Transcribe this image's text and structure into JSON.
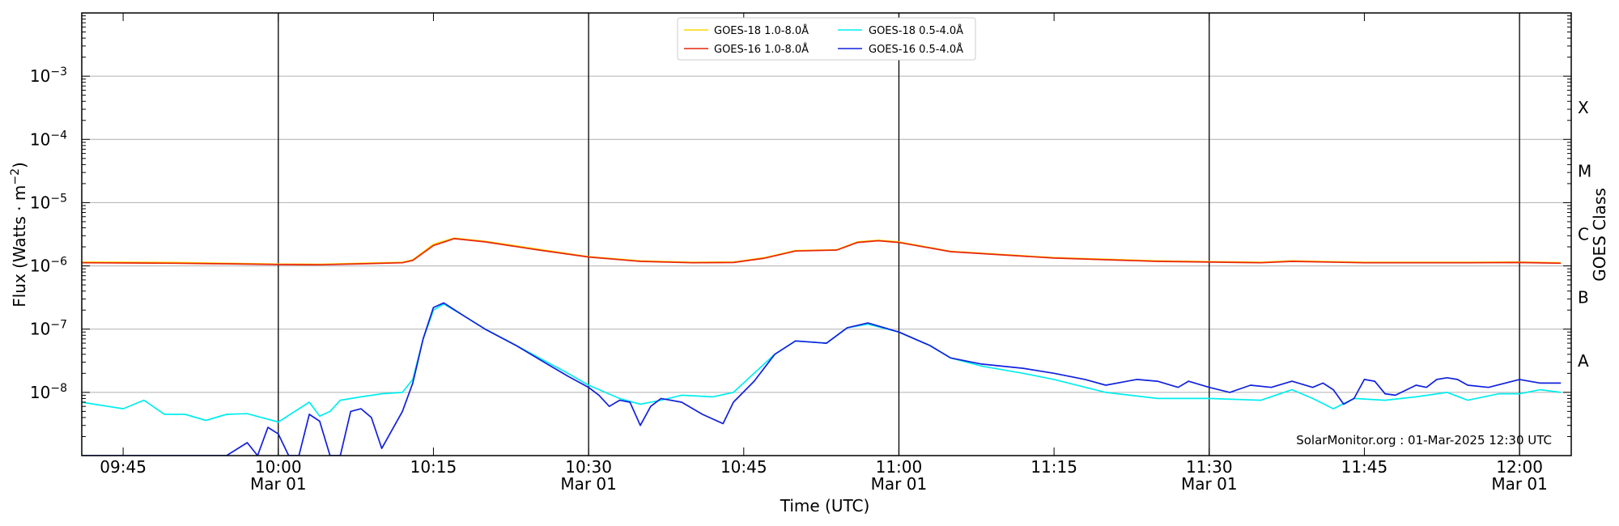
{
  "chart_data": {
    "type": "line",
    "title": "",
    "xlabel": "Time (UTC)",
    "ylabel_main": "Flux (Watts · m",
    "ylabel_sup": "−2",
    "ylabel_end": ")",
    "y2label": "GOES Class",
    "yscale": "log",
    "ylim": [
      1e-09,
      0.01
    ],
    "xlim": [
      "09:41",
      "12:05"
    ],
    "grid": "horizontal",
    "legend_position": "top-center",
    "credit": "SolarMonitor.org : 01-Mar-2025 12:30 UTC",
    "x_ticks": [
      {
        "time": "09:45",
        "label": "09:45",
        "date": ""
      },
      {
        "time": "10:00",
        "label": "10:00",
        "date": "Mar 01"
      },
      {
        "time": "10:15",
        "label": "10:15",
        "date": ""
      },
      {
        "time": "10:30",
        "label": "10:30",
        "date": "Mar 01"
      },
      {
        "time": "10:45",
        "label": "10:45",
        "date": ""
      },
      {
        "time": "11:00",
        "label": "11:00",
        "date": "Mar 01"
      },
      {
        "time": "11:15",
        "label": "11:15",
        "date": ""
      },
      {
        "time": "11:30",
        "label": "11:30",
        "date": "Mar 01"
      },
      {
        "time": "11:45",
        "label": "11:45",
        "date": ""
      },
      {
        "time": "12:00",
        "label": "12:00",
        "date": "Mar 01"
      }
    ],
    "vlines": [
      "10:00",
      "10:30",
      "11:00",
      "11:30",
      "12:00"
    ],
    "y_ticks": [
      {
        "exp": -3,
        "label_base": "10",
        "label_exp": "−3"
      },
      {
        "exp": -4,
        "label_base": "10",
        "label_exp": "−4"
      },
      {
        "exp": -5,
        "label_base": "10",
        "label_exp": "−5"
      },
      {
        "exp": -6,
        "label_base": "10",
        "label_exp": "−6"
      },
      {
        "exp": -7,
        "label_base": "10",
        "label_exp": "−7"
      },
      {
        "exp": -8,
        "label_base": "10",
        "label_exp": "−8"
      }
    ],
    "classes": [
      {
        "label": "X",
        "exp": -3.5
      },
      {
        "label": "M",
        "exp": -4.5
      },
      {
        "label": "C",
        "exp": -5.5
      },
      {
        "label": "B",
        "exp": -6.5
      },
      {
        "label": "A",
        "exp": -7.5
      }
    ],
    "series": [
      {
        "name": "GOES-18 1.0-8.0Å",
        "color": "#ffd700",
        "points": [
          [
            "09:41",
            1.15e-06
          ],
          [
            "09:46",
            1.14e-06
          ],
          [
            "09:50",
            1.13e-06
          ],
          [
            "09:55",
            1.1e-06
          ],
          [
            "10:00",
            1.07e-06
          ],
          [
            "10:04",
            1.06e-06
          ],
          [
            "10:08",
            1.1e-06
          ],
          [
            "10:12",
            1.14e-06
          ],
          [
            "10:13",
            1.25e-06
          ],
          [
            "10:15",
            2.2e-06
          ],
          [
            "10:17",
            2.75e-06
          ],
          [
            "10:20",
            2.45e-06
          ],
          [
            "10:25",
            1.85e-06
          ],
          [
            "10:30",
            1.4e-06
          ],
          [
            "10:35",
            1.2e-06
          ],
          [
            "10:40",
            1.14e-06
          ],
          [
            "10:44",
            1.15e-06
          ],
          [
            "10:47",
            1.35e-06
          ],
          [
            "10:50",
            1.75e-06
          ],
          [
            "10:54",
            1.8e-06
          ],
          [
            "10:56",
            2.4e-06
          ],
          [
            "10:58",
            2.55e-06
          ],
          [
            "11:00",
            2.4e-06
          ],
          [
            "11:05",
            1.7e-06
          ],
          [
            "11:15",
            1.35e-06
          ],
          [
            "11:25",
            1.2e-06
          ],
          [
            "11:35",
            1.14e-06
          ],
          [
            "11:38",
            1.2e-06
          ],
          [
            "11:45",
            1.14e-06
          ],
          [
            "11:55",
            1.14e-06
          ],
          [
            "12:00",
            1.15e-06
          ],
          [
            "12:04",
            1.12e-06
          ]
        ]
      },
      {
        "name": "GOES-16 1.0-8.0Å",
        "color": "#e8260f",
        "points": [
          [
            "09:41",
            1.12e-06
          ],
          [
            "09:46",
            1.11e-06
          ],
          [
            "09:50",
            1.1e-06
          ],
          [
            "09:55",
            1.08e-06
          ],
          [
            "10:00",
            1.05e-06
          ],
          [
            "10:04",
            1.04e-06
          ],
          [
            "10:08",
            1.08e-06
          ],
          [
            "10:12",
            1.12e-06
          ],
          [
            "10:13",
            1.22e-06
          ],
          [
            "10:15",
            2.1e-06
          ],
          [
            "10:17",
            2.7e-06
          ],
          [
            "10:20",
            2.4e-06
          ],
          [
            "10:25",
            1.8e-06
          ],
          [
            "10:30",
            1.38e-06
          ],
          [
            "10:35",
            1.18e-06
          ],
          [
            "10:40",
            1.12e-06
          ],
          [
            "10:44",
            1.13e-06
          ],
          [
            "10:47",
            1.32e-06
          ],
          [
            "10:50",
            1.72e-06
          ],
          [
            "10:54",
            1.78e-06
          ],
          [
            "10:56",
            2.35e-06
          ],
          [
            "10:58",
            2.5e-06
          ],
          [
            "11:00",
            2.35e-06
          ],
          [
            "11:05",
            1.68e-06
          ],
          [
            "11:15",
            1.33e-06
          ],
          [
            "11:25",
            1.18e-06
          ],
          [
            "11:35",
            1.12e-06
          ],
          [
            "11:38",
            1.18e-06
          ],
          [
            "11:45",
            1.12e-06
          ],
          [
            "11:55",
            1.12e-06
          ],
          [
            "12:00",
            1.13e-06
          ],
          [
            "12:04",
            1.1e-06
          ]
        ]
      },
      {
        "name": "GOES-18 0.5-4.0Å",
        "color": "#00eeee",
        "points": [
          [
            "09:41",
            7e-09
          ],
          [
            "09:43",
            6.2e-09
          ],
          [
            "09:45",
            5.5e-09
          ],
          [
            "09:47",
            7.5e-09
          ],
          [
            "09:49",
            4.5e-09
          ],
          [
            "09:51",
            4.5e-09
          ],
          [
            "09:53",
            3.6e-09
          ],
          [
            "09:55",
            4.5e-09
          ],
          [
            "09:57",
            4.6e-09
          ],
          [
            "10:00",
            3.4e-09
          ],
          [
            "10:02",
            5.5e-09
          ],
          [
            "10:03",
            7e-09
          ],
          [
            "10:04",
            4.2e-09
          ],
          [
            "10:05",
            5e-09
          ],
          [
            "10:06",
            7.5e-09
          ],
          [
            "10:08",
            8.5e-09
          ],
          [
            "10:10",
            9.5e-09
          ],
          [
            "10:12",
            1e-08
          ],
          [
            "10:13",
            1.6e-08
          ],
          [
            "10:14",
            7e-08
          ],
          [
            "10:15",
            2e-07
          ],
          [
            "10:16",
            2.5e-07
          ],
          [
            "10:18",
            1.6e-07
          ],
          [
            "10:20",
            1e-07
          ],
          [
            "10:23",
            5.5e-08
          ],
          [
            "10:26",
            3e-08
          ],
          [
            "10:28",
            2e-08
          ],
          [
            "10:30",
            1.3e-08
          ],
          [
            "10:33",
            8e-09
          ],
          [
            "10:35",
            6.5e-09
          ],
          [
            "10:37",
            7.5e-09
          ],
          [
            "10:39",
            9e-09
          ],
          [
            "10:42",
            8.5e-09
          ],
          [
            "10:44",
            1e-08
          ],
          [
            "10:46",
            2e-08
          ],
          [
            "10:48",
            4e-08
          ],
          [
            "10:50",
            6.5e-08
          ],
          [
            "10:53",
            6e-08
          ],
          [
            "10:55",
            1.05e-07
          ],
          [
            "10:57",
            1.2e-07
          ],
          [
            "11:00",
            9e-08
          ],
          [
            "11:03",
            5.5e-08
          ],
          [
            "11:05",
            3.5e-08
          ],
          [
            "11:08",
            2.6e-08
          ],
          [
            "11:12",
            2e-08
          ],
          [
            "11:15",
            1.6e-08
          ],
          [
            "11:20",
            1e-08
          ],
          [
            "11:25",
            8e-09
          ],
          [
            "11:30",
            8e-09
          ],
          [
            "11:35",
            7.5e-09
          ],
          [
            "11:38",
            1.1e-08
          ],
          [
            "11:40",
            8e-09
          ],
          [
            "11:42",
            5.5e-09
          ],
          [
            "11:44",
            8e-09
          ],
          [
            "11:47",
            7.5e-09
          ],
          [
            "11:50",
            8.5e-09
          ],
          [
            "11:53",
            1e-08
          ],
          [
            "11:55",
            7.5e-09
          ],
          [
            "11:58",
            9.5e-09
          ],
          [
            "12:00",
            9.5e-09
          ],
          [
            "12:02",
            1.1e-08
          ],
          [
            "12:04",
            1e-08
          ]
        ]
      },
      {
        "name": "GOES-16 0.5-4.0Å",
        "color": "#1020dd",
        "points": [
          [
            "09:41",
            1e-09
          ],
          [
            "09:50",
            1e-09
          ],
          [
            "09:55",
            1e-09
          ],
          [
            "09:57",
            1.6e-09
          ],
          [
            "09:58",
            1e-09
          ],
          [
            "09:59",
            2.8e-09
          ],
          [
            "10:00",
            2.2e-09
          ],
          [
            "10:01",
            1e-09
          ],
          [
            "10:02",
            1e-09
          ],
          [
            "10:03",
            4.5e-09
          ],
          [
            "10:04",
            3.5e-09
          ],
          [
            "10:05",
            1e-09
          ],
          [
            "10:06",
            1e-09
          ],
          [
            "10:07",
            5e-09
          ],
          [
            "10:08",
            5.5e-09
          ],
          [
            "10:09",
            4e-09
          ],
          [
            "10:10",
            1.3e-09
          ],
          [
            "10:12",
            5e-09
          ],
          [
            "10:13",
            1.4e-08
          ],
          [
            "10:14",
            7e-08
          ],
          [
            "10:15",
            2.2e-07
          ],
          [
            "10:16",
            2.6e-07
          ],
          [
            "10:18",
            1.6e-07
          ],
          [
            "10:20",
            1e-07
          ],
          [
            "10:23",
            5.5e-08
          ],
          [
            "10:26",
            2.8e-08
          ],
          [
            "10:28",
            1.8e-08
          ],
          [
            "10:30",
            1.2e-08
          ],
          [
            "10:31",
            9e-09
          ],
          [
            "10:32",
            6e-09
          ],
          [
            "10:33",
            7.5e-09
          ],
          [
            "10:34",
            7e-09
          ],
          [
            "10:35",
            3e-09
          ],
          [
            "10:36",
            6e-09
          ],
          [
            "10:37",
            8e-09
          ],
          [
            "10:39",
            7e-09
          ],
          [
            "10:41",
            4.5e-09
          ],
          [
            "10:43",
            3.2e-09
          ],
          [
            "10:44",
            7e-09
          ],
          [
            "10:46",
            1.5e-08
          ],
          [
            "10:48",
            4e-08
          ],
          [
            "10:50",
            6.5e-08
          ],
          [
            "10:53",
            6e-08
          ],
          [
            "10:55",
            1.05e-07
          ],
          [
            "10:57",
            1.25e-07
          ],
          [
            "11:00",
            9e-08
          ],
          [
            "11:03",
            5.5e-08
          ],
          [
            "11:05",
            3.5e-08
          ],
          [
            "11:08",
            2.8e-08
          ],
          [
            "11:12",
            2.4e-08
          ],
          [
            "11:15",
            2e-08
          ],
          [
            "11:18",
            1.6e-08
          ],
          [
            "11:20",
            1.3e-08
          ],
          [
            "11:23",
            1.6e-08
          ],
          [
            "11:25",
            1.5e-08
          ],
          [
            "11:27",
            1.2e-08
          ],
          [
            "11:28",
            1.5e-08
          ],
          [
            "11:30",
            1.2e-08
          ],
          [
            "11:32",
            1e-08
          ],
          [
            "11:34",
            1.3e-08
          ],
          [
            "11:36",
            1.2e-08
          ],
          [
            "11:38",
            1.5e-08
          ],
          [
            "11:40",
            1.2e-08
          ],
          [
            "11:41",
            1.4e-08
          ],
          [
            "11:42",
            1.1e-08
          ],
          [
            "11:43",
            6.5e-09
          ],
          [
            "11:44",
            8e-09
          ],
          [
            "11:45",
            1.6e-08
          ],
          [
            "11:46",
            1.5e-08
          ],
          [
            "11:47",
            9.5e-09
          ],
          [
            "11:48",
            9e-09
          ],
          [
            "11:50",
            1.3e-08
          ],
          [
            "11:51",
            1.2e-08
          ],
          [
            "11:52",
            1.6e-08
          ],
          [
            "11:53",
            1.7e-08
          ],
          [
            "11:54",
            1.6e-08
          ],
          [
            "11:55",
            1.3e-08
          ],
          [
            "11:57",
            1.2e-08
          ],
          [
            "12:00",
            1.6e-08
          ],
          [
            "12:02",
            1.4e-08
          ],
          [
            "12:04",
            1.4e-08
          ]
        ]
      }
    ]
  }
}
